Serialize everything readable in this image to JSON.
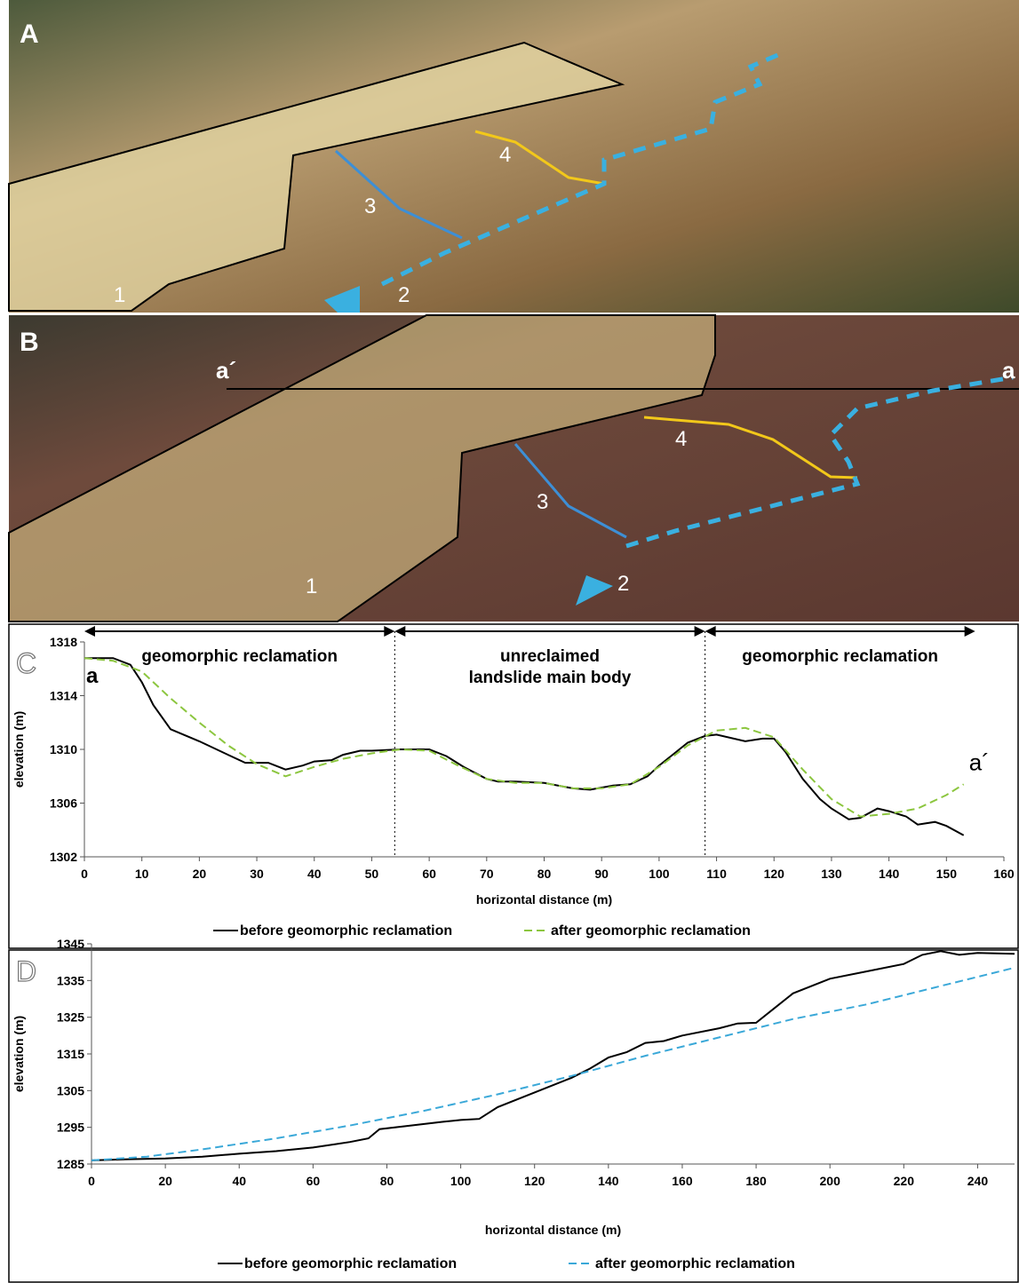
{
  "photos": [
    {
      "label": "A",
      "markers": [
        "1",
        "2",
        "3",
        "4"
      ]
    },
    {
      "label": "B",
      "markers": [
        "1",
        "2",
        "3",
        "4"
      ],
      "section": [
        "a´",
        "a"
      ]
    }
  ],
  "chart_data": [
    {
      "type": "line",
      "panel": "C",
      "xlabel": "horizontal distance (m)",
      "ylabel": "elevation (m)",
      "xlim": [
        0,
        160
      ],
      "xticks": [
        0,
        10,
        20,
        30,
        40,
        50,
        60,
        70,
        80,
        90,
        100,
        110,
        120,
        130,
        140,
        150,
        160
      ],
      "ylim": [
        1302,
        1318
      ],
      "yticks": [
        1302,
        1306,
        1310,
        1314,
        1318
      ],
      "start_label": "a",
      "end_label": "a´",
      "dividers": [
        54,
        108
      ],
      "regions": [
        {
          "label": [
            "geomorphic reclamation"
          ],
          "from": 0,
          "to": 54
        },
        {
          "label": [
            "unreclaimed",
            "landslide main body"
          ],
          "from": 54,
          "to": 108
        },
        {
          "label": [
            "geomorphic reclamation"
          ],
          "from": 108,
          "to": 155
        }
      ],
      "series": [
        {
          "name": "before geomorphic reclamation",
          "color": "#000000",
          "dashed": false,
          "x": [
            0,
            5,
            8,
            10,
            12,
            15,
            20,
            25,
            28,
            30,
            32,
            35,
            38,
            40,
            43,
            45,
            48,
            50,
            55,
            60,
            63,
            66,
            70,
            72,
            75,
            80,
            85,
            88,
            92,
            95,
            98,
            100,
            105,
            108,
            110,
            115,
            118,
            120,
            122,
            125,
            128,
            130,
            133,
            135,
            138,
            140,
            143,
            145,
            148,
            150,
            153
          ],
          "values": [
            1316.8,
            1316.8,
            1316.3,
            1315,
            1313.3,
            1311.5,
            1310.6,
            1309.6,
            1309.0,
            1309.0,
            1309.0,
            1308.5,
            1308.8,
            1309.1,
            1309.2,
            1309.6,
            1309.9,
            1309.9,
            1310.0,
            1310.0,
            1309.5,
            1308.7,
            1307.8,
            1307.6,
            1307.6,
            1307.5,
            1307.1,
            1307.0,
            1307.3,
            1307.4,
            1308.0,
            1308.8,
            1310.5,
            1311.0,
            1311.1,
            1310.6,
            1310.8,
            1310.8,
            1309.8,
            1307.8,
            1306.3,
            1305.6,
            1304.8,
            1304.9,
            1305.6,
            1305.4,
            1305.0,
            1304.4,
            1304.6,
            1304.3,
            1303.6
          ]
        },
        {
          "name": "after geomorphic reclamation",
          "color": "#8cc63f",
          "dashed": true,
          "x": [
            0,
            5,
            10,
            15,
            20,
            25,
            30,
            35,
            40,
            45,
            50,
            55,
            60,
            65,
            70,
            75,
            80,
            85,
            90,
            95,
            100,
            105,
            110,
            115,
            120,
            125,
            130,
            135,
            140,
            145,
            150,
            153
          ],
          "values": [
            1316.8,
            1316.6,
            1315.8,
            1313.8,
            1312.0,
            1310.3,
            1308.9,
            1308.0,
            1308.7,
            1309.3,
            1309.7,
            1310.0,
            1309.9,
            1308.8,
            1307.8,
            1307.5,
            1307.5,
            1307.1,
            1307.1,
            1307.4,
            1308.7,
            1310.3,
            1311.4,
            1311.6,
            1310.9,
            1308.5,
            1306.3,
            1305.0,
            1305.2,
            1305.6,
            1306.6,
            1307.4
          ]
        }
      ]
    },
    {
      "type": "line",
      "panel": "D",
      "xlabel": "horizontal distance (m)",
      "ylabel": "elevation (m)",
      "xlim": [
        0,
        250
      ],
      "xticks": [
        0,
        20,
        40,
        60,
        80,
        100,
        120,
        140,
        160,
        180,
        200,
        220,
        240
      ],
      "ylim": [
        1285,
        1345
      ],
      "yticks": [
        1285,
        1295,
        1305,
        1315,
        1325,
        1335,
        1345
      ],
      "series": [
        {
          "name": "before geomorphic reclamation",
          "color": "#000000",
          "dashed": false,
          "x": [
            0,
            10,
            20,
            30,
            40,
            50,
            60,
            70,
            75,
            78,
            85,
            95,
            100,
            105,
            110,
            120,
            130,
            135,
            140,
            145,
            150,
            155,
            160,
            170,
            175,
            180,
            185,
            190,
            200,
            210,
            220,
            225,
            230,
            235,
            240,
            250
          ],
          "values": [
            1286,
            1286.3,
            1286.5,
            1287,
            1287.8,
            1288.5,
            1289.5,
            1291,
            1292,
            1294.5,
            1295.3,
            1296.5,
            1297,
            1297.3,
            1300.5,
            1304.5,
            1308.5,
            1311,
            1314,
            1315.5,
            1318,
            1318.5,
            1320,
            1322,
            1323.3,
            1323.5,
            1327.5,
            1331.5,
            1335.5,
            1337.5,
            1339.5,
            1342,
            1343,
            1342,
            1342.5,
            1342.3
          ]
        },
        {
          "name": "after geomorphic reclamation",
          "color": "#3aa8d8",
          "dashed": true,
          "x": [
            0,
            15,
            30,
            50,
            70,
            90,
            110,
            130,
            150,
            170,
            190,
            200,
            210,
            230,
            250
          ],
          "values": [
            1286,
            1287,
            1289,
            1292,
            1295.5,
            1299.5,
            1304,
            1309,
            1314.5,
            1319.5,
            1324.5,
            1326.5,
            1328.5,
            1333.5,
            1338.5
          ]
        }
      ]
    }
  ]
}
